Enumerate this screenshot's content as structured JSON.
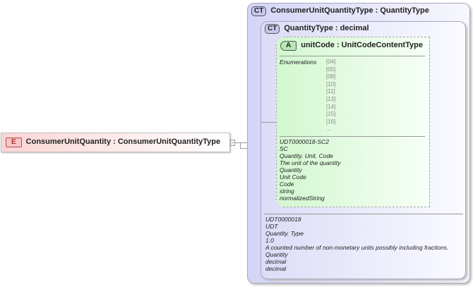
{
  "element": {
    "badge": "E",
    "title": "ConsumerUnitQuantity : ConsumerUnitQuantityType"
  },
  "outer_type": {
    "badge": "CT",
    "title": "ConsumerUnitQuantityType : QuantityType"
  },
  "inner_type": {
    "badge": "CT",
    "title": "QuantityType : decimal",
    "details": [
      "UDT0000018",
      "UDT",
      "Quantity. Type",
      "1.0",
      "A counted number of non-monetary units possibly including fractions.",
      "Quantity",
      "decimal",
      "decimal"
    ]
  },
  "attribute": {
    "badge": "A",
    "title": "unitCode : UnitCodeContentType",
    "enumerations_label": "Enumerations",
    "enumerations": [
      "[04]",
      "[05]",
      "[08]",
      "[10]",
      "[11]",
      "[13]",
      "[14]",
      "[15]",
      "[16]",
      "..."
    ],
    "details": [
      "UDT0000018-SC2",
      "SC",
      "Quantity. Unit. Code",
      "The unit of the quantity",
      "Quantity",
      "Unit Code",
      "Code",
      "string",
      "normalizedString"
    ]
  }
}
